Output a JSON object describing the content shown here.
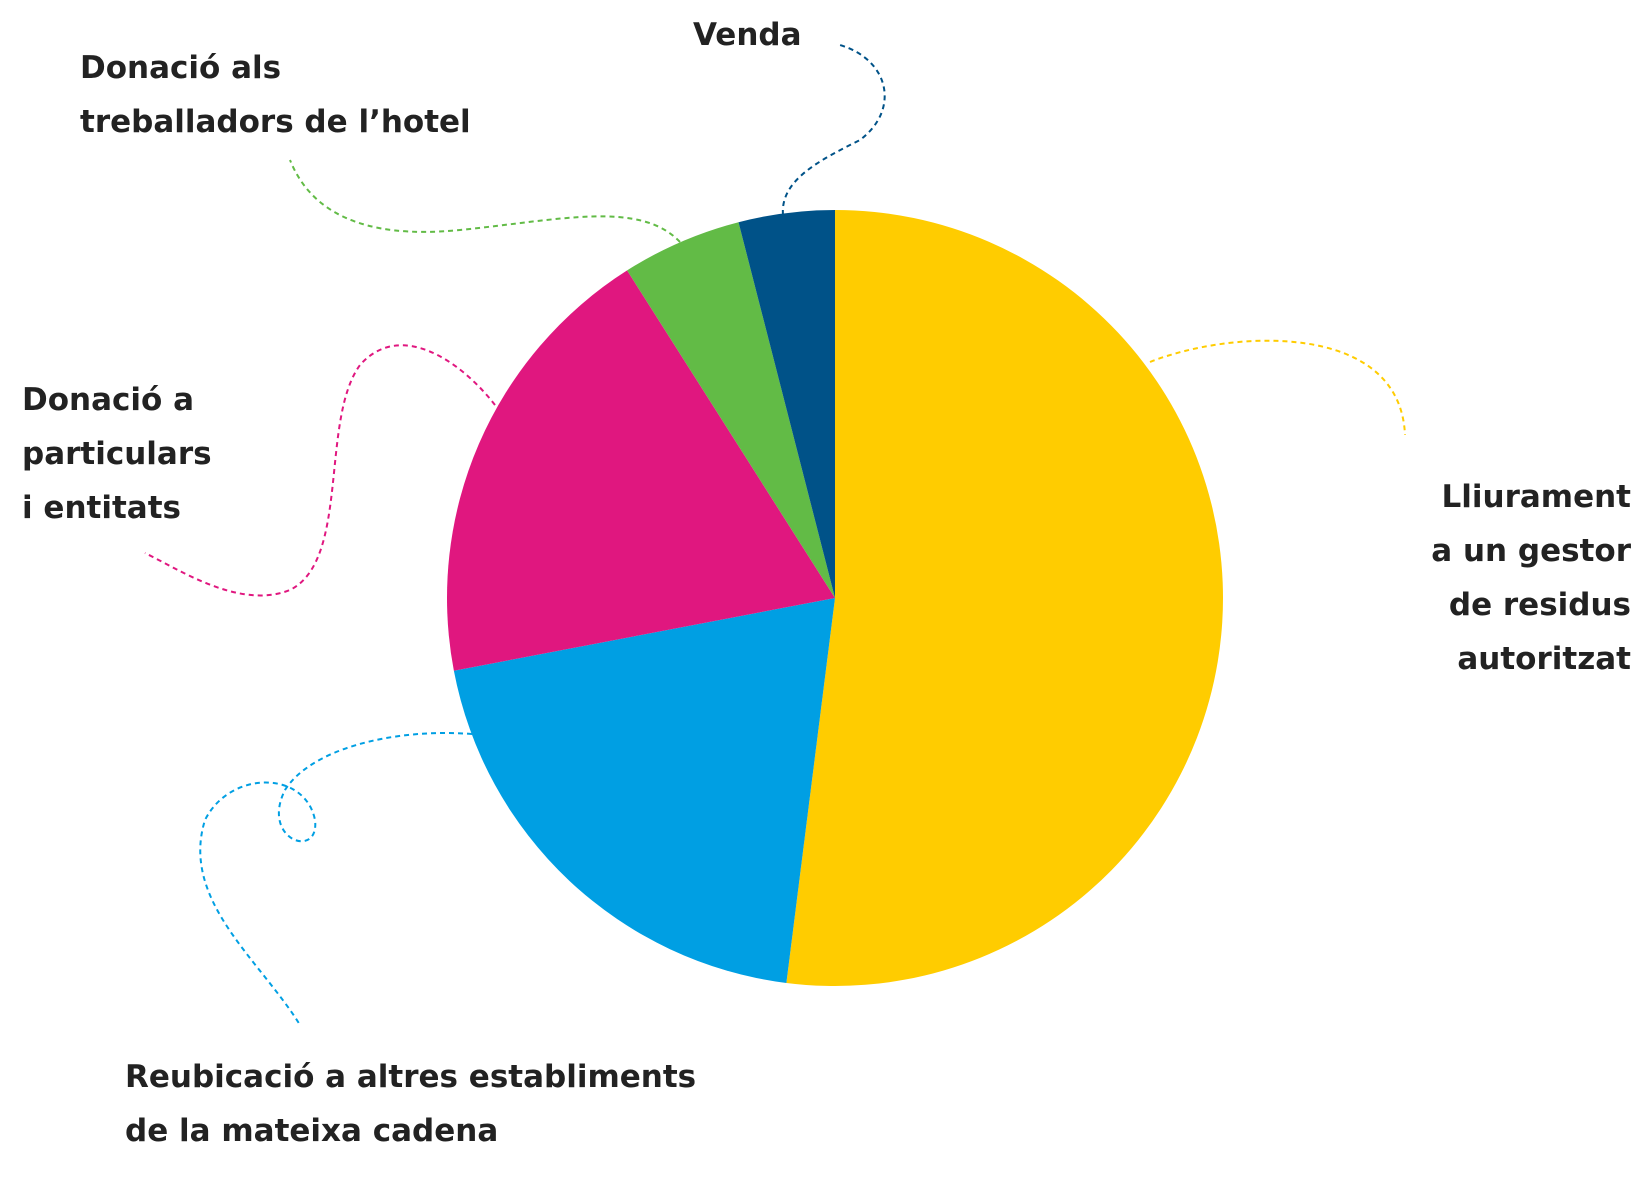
{
  "chart_data": {
    "type": "pie",
    "categories": [
      "Lliurament\na un gestor\nde residus\nautoritzat",
      "Reubicació a altres establiments\nde la mateixa cadena",
      "Donació a\nparticulars\ni entitats",
      "Donació als\ntreballadors de l’hotel",
      "Venda"
    ],
    "values": [
      52,
      20,
      19,
      5,
      4
    ],
    "colors": [
      "#ffcc00",
      "#009fe3",
      "#e0177f",
      "#62bb46",
      "#005288"
    ]
  }
}
